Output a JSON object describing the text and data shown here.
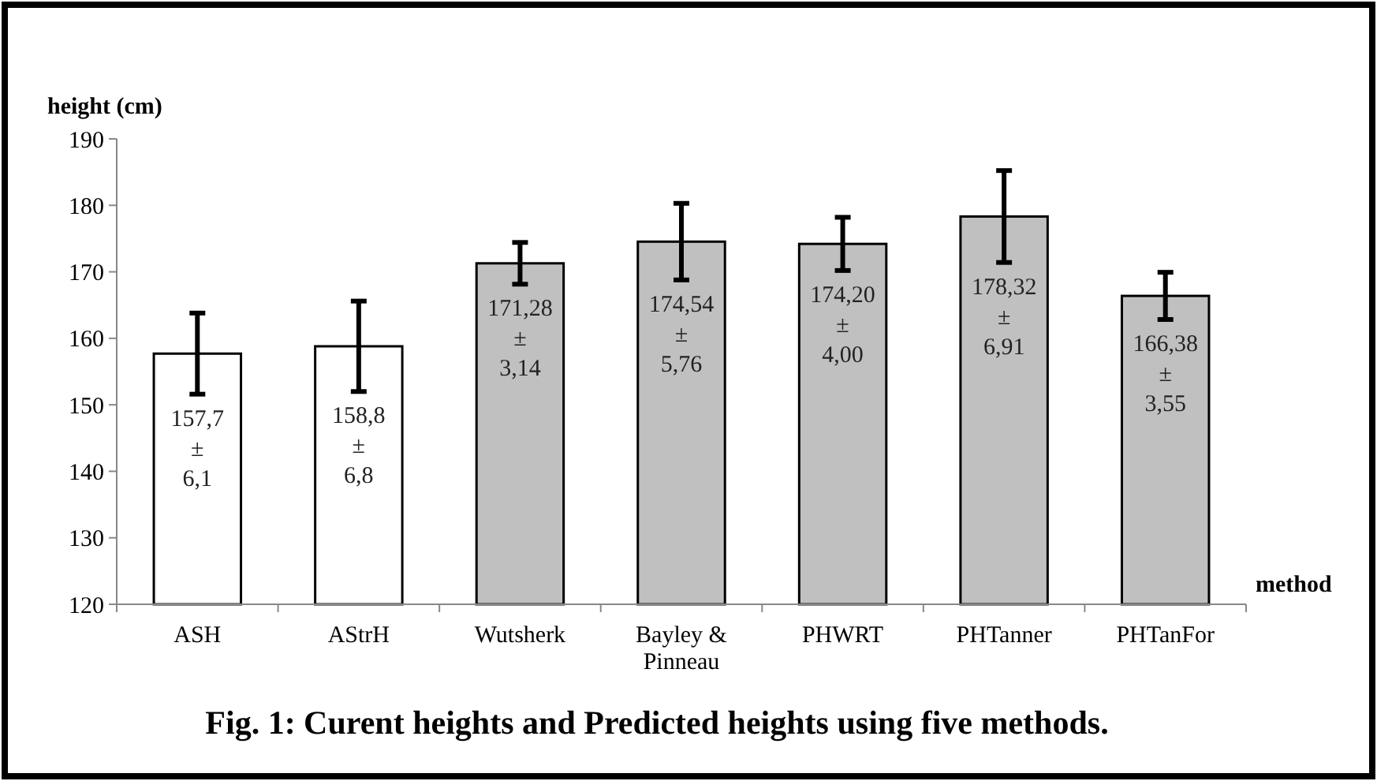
{
  "chart_data": {
    "type": "bar",
    "title": "Fig. 1: Curent heights and Predicted heights using five methods.",
    "xlabel": "method",
    "ylabel": "height (cm)",
    "categories": [
      "ASH",
      "AStrH",
      "Wutsherk",
      "Bayley & Pinneau",
      "PHWRT",
      "PHTanner",
      "PHTanFor"
    ],
    "values": [
      157.7,
      158.8,
      171.28,
      174.54,
      174.2,
      178.32,
      166.38
    ],
    "errors": [
      6.1,
      6.8,
      3.14,
      5.76,
      4.0,
      6.91,
      3.55
    ],
    "value_labels": [
      "157,7\n±\n6,1",
      "158,8\n±\n6,8",
      "171,28\n±\n3,14",
      "174,54\n±\n5,76",
      "174,20\n±\n4,00",
      "178,32\n±\n6,91",
      "166,38\n±\n3,55"
    ],
    "colors": [
      "#ffffff",
      "#ffffff",
      "#c0c0c0",
      "#c0c0c0",
      "#c0c0c0",
      "#c0c0c0",
      "#c0c0c0"
    ],
    "ylim": [
      120,
      190
    ],
    "yticks": [
      120,
      130,
      140,
      150,
      160,
      170,
      180,
      190
    ],
    "grid": false
  }
}
